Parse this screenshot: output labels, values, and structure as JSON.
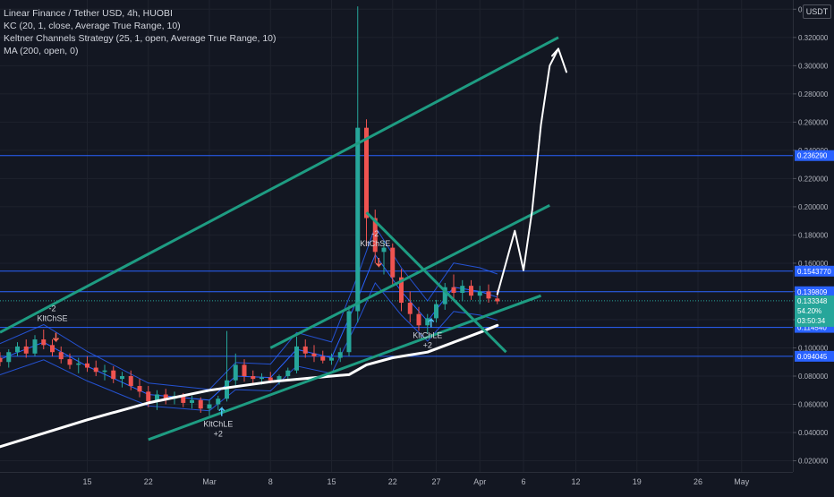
{
  "legend": {
    "title": "Linear Finance / Tether USD, 4h, HUOBI",
    "kc": "KC (20, 1, close, Average True Range, 10)",
    "strategy": "Keltner Channels Strategy (25, 1, open, Average True Range, 10)",
    "ma": "MA (200, open, 0)"
  },
  "currency_label": "USDT",
  "colors": {
    "background": "#131722",
    "grid": "#1e222d",
    "up": "#26a69a",
    "down": "#ef5350",
    "keltner": "#2962ff",
    "trendline": "#1e9c82",
    "ma": "#ffffff",
    "hline": "#2962ff",
    "price_label_bg": "#2962ff",
    "current_label_bg": "#26a69a"
  },
  "chart_data": {
    "type": "candlestick",
    "yaxis": {
      "ticks": [
        "0.020000",
        "0.040000",
        "0.060000",
        "0.080000",
        "0.100000",
        "0.120000",
        "0.140000",
        "0.160000",
        "0.180000",
        "0.200000",
        "0.220000",
        "0.240000",
        "0.260000",
        "0.280000",
        "0.300000",
        "0.320000",
        "0.340000"
      ],
      "range": [
        0.014,
        0.344
      ]
    },
    "xaxis": {
      "ticks": [
        {
          "label": "15",
          "date": "2021-02-15"
        },
        {
          "label": "22",
          "date": "2021-02-22"
        },
        {
          "label": "Mar",
          "date": "2021-03-01"
        },
        {
          "label": "8",
          "date": "2021-03-08"
        },
        {
          "label": "15",
          "date": "2021-03-15"
        },
        {
          "label": "22",
          "date": "2021-03-22"
        },
        {
          "label": "27",
          "date": "2021-03-27"
        },
        {
          "label": "Apr",
          "date": "2021-04-01"
        },
        {
          "label": "6",
          "date": "2021-04-06"
        },
        {
          "label": "12",
          "date": "2021-04-12"
        },
        {
          "label": "19",
          "date": "2021-04-19"
        },
        {
          "label": "26",
          "date": "2021-04-26"
        },
        {
          "label": "May",
          "date": "2021-05-01"
        }
      ]
    },
    "price_levels": [
      {
        "value": 0.23629,
        "label": "0.236290"
      },
      {
        "value": 0.154377,
        "label": "0.1543770"
      },
      {
        "value": 0.139809,
        "label": "0.139809"
      },
      {
        "value": 0.11454,
        "label": "0.114540"
      },
      {
        "value": 0.094045,
        "label": "0.094045"
      }
    ],
    "current_price": {
      "value": 0.133348,
      "label": "0.133348",
      "change": "54.20%",
      "countdown": "03:50:34"
    },
    "signals": [
      {
        "date": "2021-02-11",
        "price": 0.112,
        "text": "-2",
        "text2": "KltChSE",
        "side": "short"
      },
      {
        "date": "2021-03-02",
        "price": 0.058,
        "text": "KltChLE",
        "text2": "+2",
        "side": "long"
      },
      {
        "date": "2021-03-20",
        "price": 0.165,
        "text": "-2",
        "text2": "KltChSE",
        "side": "short"
      },
      {
        "date": "2021-03-26",
        "price": 0.121,
        "text": "KltChLE",
        "text2": "+2",
        "side": "long"
      }
    ],
    "trend_lines": [
      {
        "name": "upper-channel",
        "from": {
          "date": "2021-02-05",
          "price": 0.111
        },
        "to": {
          "date": "2021-04-10",
          "price": 0.32
        }
      },
      {
        "name": "middle-channel",
        "from": {
          "date": "2021-03-08",
          "price": 0.1
        },
        "to": {
          "date": "2021-04-09",
          "price": 0.201
        }
      },
      {
        "name": "lower-channel",
        "from": {
          "date": "2021-02-22",
          "price": 0.035
        },
        "to": {
          "date": "2021-04-08",
          "price": 0.137
        }
      },
      {
        "name": "descending-line",
        "from": {
          "date": "2021-03-19",
          "price": 0.196
        },
        "to": {
          "date": "2021-04-04",
          "price": 0.097
        }
      }
    ],
    "projection_path": [
      {
        "date": "2021-04-03",
        "price": 0.138
      },
      {
        "date": "2021-04-05",
        "price": 0.183
      },
      {
        "date": "2021-04-06",
        "price": 0.155
      },
      {
        "date": "2021-04-07",
        "price": 0.198
      },
      {
        "date": "2021-04-08",
        "price": 0.258
      },
      {
        "date": "2021-04-09",
        "price": 0.3
      },
      {
        "date": "2021-04-10",
        "price": 0.312
      }
    ],
    "moving_average": [
      {
        "date": "2021-02-05",
        "price": 0.03
      },
      {
        "date": "2021-02-15",
        "price": 0.049
      },
      {
        "date": "2021-02-22",
        "price": 0.061
      },
      {
        "date": "2021-03-01",
        "price": 0.07
      },
      {
        "date": "2021-03-08",
        "price": 0.076
      },
      {
        "date": "2021-03-15",
        "price": 0.08
      },
      {
        "date": "2021-03-17",
        "price": 0.081
      },
      {
        "date": "2021-03-19",
        "price": 0.088
      },
      {
        "date": "2021-03-22",
        "price": 0.093
      },
      {
        "date": "2021-03-26",
        "price": 0.097
      },
      {
        "date": "2021-03-29",
        "price": 0.104
      },
      {
        "date": "2021-04-01",
        "price": 0.111
      },
      {
        "date": "2021-04-03",
        "price": 0.116
      }
    ],
    "keltner_mid": [
      {
        "date": "2021-02-05",
        "price": 0.092
      },
      {
        "date": "2021-02-10",
        "price": 0.104
      },
      {
        "date": "2021-02-15",
        "price": 0.087
      },
      {
        "date": "2021-02-22",
        "price": 0.067
      },
      {
        "date": "2021-03-01",
        "price": 0.063
      },
      {
        "date": "2021-03-04",
        "price": 0.08
      },
      {
        "date": "2021-03-08",
        "price": 0.079
      },
      {
        "date": "2021-03-11",
        "price": 0.099
      },
      {
        "date": "2021-03-15",
        "price": 0.093
      },
      {
        "date": "2021-03-18",
        "price": 0.135
      },
      {
        "date": "2021-03-20",
        "price": 0.166
      },
      {
        "date": "2021-03-23",
        "price": 0.14
      },
      {
        "date": "2021-03-26",
        "price": 0.119
      },
      {
        "date": "2021-03-29",
        "price": 0.143
      },
      {
        "date": "2021-04-01",
        "price": 0.14
      },
      {
        "date": "2021-04-03",
        "price": 0.136
      }
    ],
    "candles": [
      {
        "date": "2021-02-05",
        "o": 0.093,
        "h": 0.097,
        "l": 0.087,
        "c": 0.09
      },
      {
        "date": "2021-02-06",
        "o": 0.09,
        "h": 0.099,
        "l": 0.086,
        "c": 0.097
      },
      {
        "date": "2021-02-07",
        "o": 0.097,
        "h": 0.104,
        "l": 0.094,
        "c": 0.101
      },
      {
        "date": "2021-02-08",
        "o": 0.101,
        "h": 0.106,
        "l": 0.093,
        "c": 0.096
      },
      {
        "date": "2021-02-09",
        "o": 0.096,
        "h": 0.109,
        "l": 0.094,
        "c": 0.106
      },
      {
        "date": "2021-02-10",
        "o": 0.106,
        "h": 0.113,
        "l": 0.099,
        "c": 0.102
      },
      {
        "date": "2021-02-11",
        "o": 0.102,
        "h": 0.106,
        "l": 0.094,
        "c": 0.097
      },
      {
        "date": "2021-02-12",
        "o": 0.097,
        "h": 0.101,
        "l": 0.089,
        "c": 0.092
      },
      {
        "date": "2021-02-13",
        "o": 0.092,
        "h": 0.096,
        "l": 0.085,
        "c": 0.088
      },
      {
        "date": "2021-02-14",
        "o": 0.088,
        "h": 0.093,
        "l": 0.082,
        "c": 0.089
      },
      {
        "date": "2021-02-15",
        "o": 0.089,
        "h": 0.094,
        "l": 0.083,
        "c": 0.086
      },
      {
        "date": "2021-02-16",
        "o": 0.086,
        "h": 0.091,
        "l": 0.08,
        "c": 0.083
      },
      {
        "date": "2021-02-17",
        "o": 0.083,
        "h": 0.088,
        "l": 0.077,
        "c": 0.084
      },
      {
        "date": "2021-02-18",
        "o": 0.084,
        "h": 0.087,
        "l": 0.075,
        "c": 0.078
      },
      {
        "date": "2021-02-19",
        "o": 0.078,
        "h": 0.083,
        "l": 0.072,
        "c": 0.08
      },
      {
        "date": "2021-02-20",
        "o": 0.08,
        "h": 0.084,
        "l": 0.07,
        "c": 0.073
      },
      {
        "date": "2021-02-21",
        "o": 0.073,
        "h": 0.078,
        "l": 0.065,
        "c": 0.069
      },
      {
        "date": "2021-02-22",
        "o": 0.069,
        "h": 0.073,
        "l": 0.058,
        "c": 0.062
      },
      {
        "date": "2021-02-23",
        "o": 0.062,
        "h": 0.07,
        "l": 0.056,
        "c": 0.067
      },
      {
        "date": "2021-02-24",
        "o": 0.067,
        "h": 0.071,
        "l": 0.06,
        "c": 0.064
      },
      {
        "date": "2021-02-25",
        "o": 0.064,
        "h": 0.069,
        "l": 0.06,
        "c": 0.066
      },
      {
        "date": "2021-02-26",
        "o": 0.066,
        "h": 0.068,
        "l": 0.058,
        "c": 0.061
      },
      {
        "date": "2021-02-27",
        "o": 0.061,
        "h": 0.066,
        "l": 0.057,
        "c": 0.063
      },
      {
        "date": "2021-02-28",
        "o": 0.063,
        "h": 0.065,
        "l": 0.054,
        "c": 0.057
      },
      {
        "date": "2021-03-01",
        "o": 0.057,
        "h": 0.063,
        "l": 0.052,
        "c": 0.06
      },
      {
        "date": "2021-03-02",
        "o": 0.06,
        "h": 0.066,
        "l": 0.056,
        "c": 0.064
      },
      {
        "date": "2021-03-03",
        "o": 0.064,
        "h": 0.112,
        "l": 0.062,
        "c": 0.077
      },
      {
        "date": "2021-03-04",
        "o": 0.077,
        "h": 0.096,
        "l": 0.072,
        "c": 0.088
      },
      {
        "date": "2021-03-05",
        "o": 0.088,
        "h": 0.092,
        "l": 0.076,
        "c": 0.08
      },
      {
        "date": "2021-03-06",
        "o": 0.08,
        "h": 0.084,
        "l": 0.075,
        "c": 0.078
      },
      {
        "date": "2021-03-07",
        "o": 0.078,
        "h": 0.082,
        "l": 0.074,
        "c": 0.079
      },
      {
        "date": "2021-03-08",
        "o": 0.079,
        "h": 0.083,
        "l": 0.075,
        "c": 0.077
      },
      {
        "date": "2021-03-09",
        "o": 0.077,
        "h": 0.081,
        "l": 0.074,
        "c": 0.08
      },
      {
        "date": "2021-03-10",
        "o": 0.08,
        "h": 0.086,
        "l": 0.077,
        "c": 0.084
      },
      {
        "date": "2021-03-11",
        "o": 0.084,
        "h": 0.108,
        "l": 0.082,
        "c": 0.101
      },
      {
        "date": "2021-03-12",
        "o": 0.101,
        "h": 0.106,
        "l": 0.093,
        "c": 0.096
      },
      {
        "date": "2021-03-13",
        "o": 0.096,
        "h": 0.102,
        "l": 0.09,
        "c": 0.094
      },
      {
        "date": "2021-03-14",
        "o": 0.094,
        "h": 0.098,
        "l": 0.089,
        "c": 0.091
      },
      {
        "date": "2021-03-15",
        "o": 0.091,
        "h": 0.096,
        "l": 0.088,
        "c": 0.093
      },
      {
        "date": "2021-03-16",
        "o": 0.093,
        "h": 0.1,
        "l": 0.09,
        "c": 0.097
      },
      {
        "date": "2021-03-17",
        "o": 0.097,
        "h": 0.13,
        "l": 0.094,
        "c": 0.126
      },
      {
        "date": "2021-03-18",
        "o": 0.126,
        "h": 0.342,
        "l": 0.118,
        "c": 0.256
      },
      {
        "date": "2021-03-19",
        "o": 0.256,
        "h": 0.262,
        "l": 0.172,
        "c": 0.192
      },
      {
        "date": "2021-03-20",
        "o": 0.192,
        "h": 0.198,
        "l": 0.16,
        "c": 0.168
      },
      {
        "date": "2021-03-21",
        "o": 0.168,
        "h": 0.176,
        "l": 0.152,
        "c": 0.171
      },
      {
        "date": "2021-03-22",
        "o": 0.171,
        "h": 0.174,
        "l": 0.144,
        "c": 0.15
      },
      {
        "date": "2021-03-23",
        "o": 0.15,
        "h": 0.156,
        "l": 0.126,
        "c": 0.132
      },
      {
        "date": "2021-03-24",
        "o": 0.132,
        "h": 0.14,
        "l": 0.118,
        "c": 0.124
      },
      {
        "date": "2021-03-25",
        "o": 0.124,
        "h": 0.129,
        "l": 0.112,
        "c": 0.116
      },
      {
        "date": "2021-03-26",
        "o": 0.116,
        "h": 0.124,
        "l": 0.11,
        "c": 0.121
      },
      {
        "date": "2021-03-27",
        "o": 0.121,
        "h": 0.134,
        "l": 0.118,
        "c": 0.131
      },
      {
        "date": "2021-03-28",
        "o": 0.131,
        "h": 0.146,
        "l": 0.127,
        "c": 0.143
      },
      {
        "date": "2021-03-29",
        "o": 0.143,
        "h": 0.152,
        "l": 0.134,
        "c": 0.139
      },
      {
        "date": "2021-03-30",
        "o": 0.139,
        "h": 0.148,
        "l": 0.133,
        "c": 0.144
      },
      {
        "date": "2021-03-31",
        "o": 0.144,
        "h": 0.148,
        "l": 0.134,
        "c": 0.137
      },
      {
        "date": "2021-04-01",
        "o": 0.137,
        "h": 0.144,
        "l": 0.131,
        "c": 0.14
      },
      {
        "date": "2021-04-02",
        "o": 0.14,
        "h": 0.145,
        "l": 0.132,
        "c": 0.135
      },
      {
        "date": "2021-04-03",
        "o": 0.135,
        "h": 0.141,
        "l": 0.131,
        "c": 0.133
      }
    ]
  }
}
